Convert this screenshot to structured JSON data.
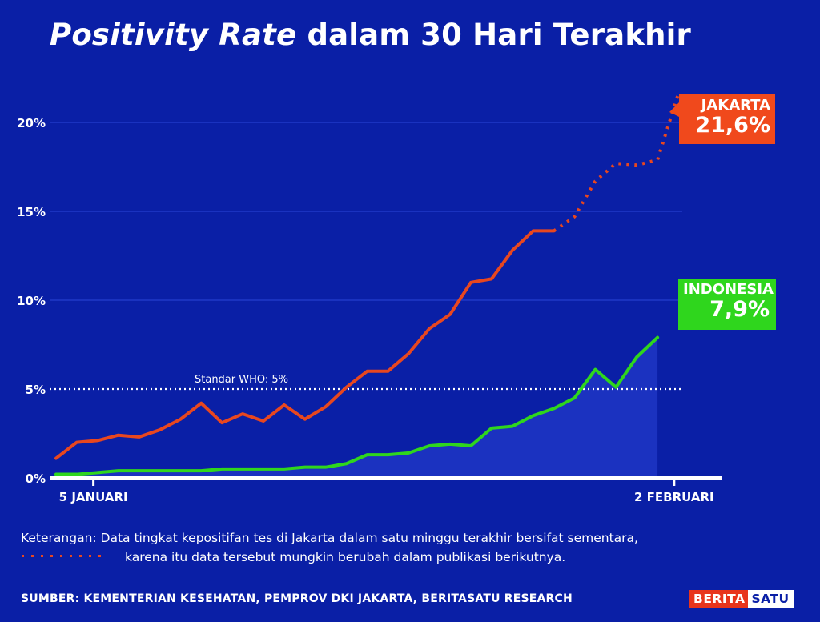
{
  "title": {
    "italic_part": "Positivity Rate",
    "rest": "dalam 30 Hari Terakhir"
  },
  "chart_data": {
    "type": "line",
    "title": "Positivity Rate dalam 30 Hari Terakhir",
    "ylabel": "",
    "xlabel": "",
    "ylim": [
      0,
      22
    ],
    "yticks": [
      0,
      5,
      10,
      15,
      20
    ],
    "ytick_labels": [
      "0%",
      "5%",
      "10%",
      "15%",
      "20%"
    ],
    "x_labels": [
      {
        "index": 2,
        "label": "5 JANUARI"
      },
      {
        "index": 30,
        "label": "2 FEBRUARI"
      }
    ],
    "series": [
      {
        "name": "JAKARTA",
        "color": "#e8471f",
        "provisional_from_index": 24,
        "values": [
          1.1,
          2.0,
          2.1,
          2.4,
          2.3,
          2.7,
          3.3,
          4.2,
          3.1,
          3.6,
          3.2,
          4.1,
          3.3,
          4.0,
          5.1,
          6.0,
          6.0,
          7.0,
          8.4,
          9.2,
          11.0,
          11.2,
          12.8,
          13.9,
          13.9,
          14.7,
          16.7,
          17.7,
          17.6,
          17.9,
          21.6
        ]
      },
      {
        "name": "INDONESIA",
        "color": "#2fd61d",
        "values": [
          0.2,
          0.2,
          0.3,
          0.4,
          0.4,
          0.4,
          0.4,
          0.4,
          0.5,
          0.5,
          0.5,
          0.5,
          0.6,
          0.6,
          0.8,
          1.3,
          1.3,
          1.4,
          1.8,
          1.9,
          1.8,
          2.8,
          2.9,
          3.5,
          3.9,
          4.5,
          6.1,
          5.1,
          6.8,
          7.9
        ]
      }
    ],
    "reference_line": {
      "value": 5,
      "label": "Standar WHO: 5%"
    },
    "callouts": [
      {
        "series": "JAKARTA",
        "label": "JAKARTA",
        "value": "21,6%"
      },
      {
        "series": "INDONESIA",
        "label": "INDONESIA",
        "value": "7,9%"
      }
    ]
  },
  "note": {
    "line1": "Keterangan: Data tingkat kepositifan tes di Jakarta dalam satu minggu terakhir bersifat sementara,",
    "line2": "karena itu data tersebut mungkin berubah dalam publikasi berikutnya."
  },
  "source": "SUMBER: KEMENTERIAN KESEHATAN, PEMPROV DKI JAKARTA, BERITASATU RESEARCH",
  "logo": {
    "part1": "BERITA",
    "part2": "SATU"
  },
  "colors": {
    "background": "#0a1fa6",
    "jakarta": "#e8471f",
    "indonesia": "#2fd61d",
    "area": "#1f36c4"
  }
}
